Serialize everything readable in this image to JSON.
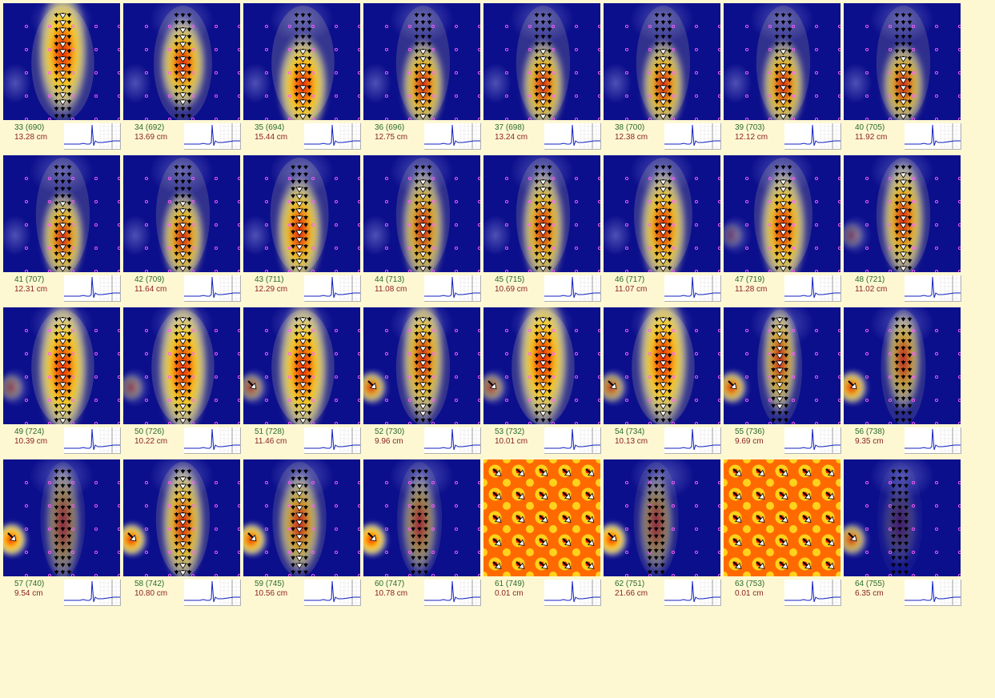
{
  "frames": [
    {
      "id": "33",
      "t": "690",
      "depth": "13.28 cm",
      "mode": "map",
      "hx": 0.51,
      "hy": 0.42,
      "intensity": 0.95,
      "w": 0.14,
      "h": 0.75,
      "side": null
    },
    {
      "id": "34",
      "t": "692",
      "depth": "13.69 cm",
      "mode": "map",
      "hx": 0.51,
      "hy": 0.52,
      "intensity": 0.9,
      "w": 0.13,
      "h": 0.55,
      "side": null
    },
    {
      "id": "35",
      "t": "694",
      "depth": "15.44 cm",
      "mode": "map",
      "hx": 0.51,
      "hy": 0.7,
      "intensity": 0.95,
      "w": 0.14,
      "h": 0.6,
      "side": null
    },
    {
      "id": "36",
      "t": "696",
      "depth": "12.75 cm",
      "mode": "map",
      "hx": 0.51,
      "hy": 0.7,
      "intensity": 0.85,
      "w": 0.12,
      "h": 0.55,
      "side": null
    },
    {
      "id": "37",
      "t": "698",
      "depth": "13.24 cm",
      "mode": "map",
      "hx": 0.51,
      "hy": 0.7,
      "intensity": 0.85,
      "w": 0.12,
      "h": 0.55,
      "side": null
    },
    {
      "id": "38",
      "t": "700",
      "depth": "12.38 cm",
      "mode": "map",
      "hx": 0.51,
      "hy": 0.7,
      "intensity": 0.85,
      "w": 0.12,
      "h": 0.55,
      "side": null
    },
    {
      "id": "39",
      "t": "703",
      "depth": "12.12 cm",
      "mode": "map",
      "hx": 0.51,
      "hy": 0.7,
      "intensity": 0.85,
      "w": 0.12,
      "h": 0.55,
      "side": null
    },
    {
      "id": "40",
      "t": "705",
      "depth": "11.92 cm",
      "mode": "map",
      "hx": 0.51,
      "hy": 0.7,
      "intensity": 0.8,
      "w": 0.12,
      "h": 0.5,
      "side": null
    },
    {
      "id": "41",
      "t": "707",
      "depth": "12.31 cm",
      "mode": "map",
      "hx": 0.51,
      "hy": 0.7,
      "intensity": 0.85,
      "w": 0.12,
      "h": 0.55,
      "side": null
    },
    {
      "id": "42",
      "t": "709",
      "depth": "11.64 cm",
      "mode": "map",
      "hx": 0.51,
      "hy": 0.7,
      "intensity": 0.85,
      "w": 0.12,
      "h": 0.55,
      "side": null
    },
    {
      "id": "43",
      "t": "711",
      "depth": "12.29 cm",
      "mode": "map",
      "hx": 0.48,
      "hy": 0.65,
      "intensity": 0.9,
      "w": 0.13,
      "h": 0.65,
      "side": null
    },
    {
      "id": "44",
      "t": "713",
      "depth": "11.08 cm",
      "mode": "map",
      "hx": 0.51,
      "hy": 0.62,
      "intensity": 0.8,
      "w": 0.12,
      "h": 0.7,
      "side": null
    },
    {
      "id": "45",
      "t": "715",
      "depth": "10.69 cm",
      "mode": "map",
      "hx": 0.51,
      "hy": 0.62,
      "intensity": 0.85,
      "w": 0.12,
      "h": 0.7,
      "side": null
    },
    {
      "id": "46",
      "t": "717",
      "depth": "11.07 cm",
      "mode": "map",
      "hx": 0.51,
      "hy": 0.62,
      "intensity": 0.9,
      "w": 0.13,
      "h": 0.7,
      "side": null
    },
    {
      "id": "47",
      "t": "719",
      "depth": "11.28 cm",
      "mode": "map",
      "hx": 0.51,
      "hy": 0.62,
      "intensity": 0.9,
      "w": 0.13,
      "h": 0.7,
      "side": 0.25
    },
    {
      "id": "48",
      "t": "721",
      "depth": "11.02 cm",
      "mode": "map",
      "hx": 0.51,
      "hy": 0.55,
      "intensity": 0.85,
      "w": 0.12,
      "h": 0.7,
      "side": 0.3
    },
    {
      "id": "49",
      "t": "724",
      "depth": "10.39 cm",
      "mode": "map",
      "hx": 0.51,
      "hy": 0.52,
      "intensity": 0.95,
      "w": 0.14,
      "h": 0.8,
      "side": 0.4
    },
    {
      "id": "50",
      "t": "726",
      "depth": "10.22 cm",
      "mode": "map",
      "hx": 0.51,
      "hy": 0.52,
      "intensity": 0.95,
      "w": 0.14,
      "h": 0.8,
      "side": 0.4
    },
    {
      "id": "51",
      "t": "728",
      "depth": "11.46 cm",
      "mode": "map",
      "hx": 0.51,
      "hy": 0.52,
      "intensity": 0.95,
      "w": 0.14,
      "h": 0.8,
      "side": 0.55
    },
    {
      "id": "52",
      "t": "730",
      "depth": "9.96 cm",
      "mode": "map",
      "hx": 0.51,
      "hy": 0.45,
      "intensity": 0.85,
      "w": 0.12,
      "h": 0.75,
      "side": 0.85
    },
    {
      "id": "53",
      "t": "732",
      "depth": "10.01 cm",
      "mode": "map",
      "hx": 0.51,
      "hy": 0.45,
      "intensity": 0.95,
      "w": 0.14,
      "h": 0.8,
      "side": 0.55
    },
    {
      "id": "54",
      "t": "734",
      "depth": "10.13 cm",
      "mode": "map",
      "hx": 0.51,
      "hy": 0.45,
      "intensity": 0.95,
      "w": 0.14,
      "h": 0.8,
      "side": 0.7
    },
    {
      "id": "55",
      "t": "736",
      "depth": "9.69 cm",
      "mode": "map",
      "hx": 0.48,
      "hy": 0.45,
      "intensity": 0.75,
      "w": 0.1,
      "h": 0.65,
      "side": 0.85
    },
    {
      "id": "56",
      "t": "738",
      "depth": "9.35 cm",
      "mode": "map",
      "hx": 0.51,
      "hy": 0.45,
      "intensity": 0.7,
      "w": 0.1,
      "h": 0.6,
      "side": 0.9
    },
    {
      "id": "57",
      "t": "740",
      "depth": "9.54 cm",
      "mode": "map",
      "hx": 0.51,
      "hy": 0.55,
      "intensity": 0.5,
      "w": 0.1,
      "h": 0.7,
      "side": 1.0
    },
    {
      "id": "58",
      "t": "742",
      "depth": "10.80 cm",
      "mode": "map",
      "hx": 0.51,
      "hy": 0.55,
      "intensity": 0.85,
      "w": 0.12,
      "h": 0.7,
      "side": 0.95
    },
    {
      "id": "59",
      "t": "745",
      "depth": "10.56 cm",
      "mode": "map",
      "hx": 0.48,
      "hy": 0.55,
      "intensity": 0.75,
      "w": 0.12,
      "h": 0.6,
      "side": 0.95
    },
    {
      "id": "60",
      "t": "747",
      "depth": "10.78 cm",
      "mode": "map",
      "hx": 0.48,
      "hy": 0.55,
      "intensity": 0.55,
      "w": 0.1,
      "h": 0.6,
      "side": 1.0
    },
    {
      "id": "61",
      "t": "749",
      "depth": "0.01 cm",
      "mode": "pattern",
      "hx": 0.5,
      "hy": 0.5,
      "intensity": 1,
      "w": 0.1,
      "h": 0.1,
      "side": null
    },
    {
      "id": "62",
      "t": "751",
      "depth": "21.66 cm",
      "mode": "map",
      "hx": 0.45,
      "hy": 0.55,
      "intensity": 0.5,
      "w": 0.1,
      "h": 0.6,
      "side": 1.0
    },
    {
      "id": "63",
      "t": "753",
      "depth": "0.01 cm",
      "mode": "pattern",
      "hx": 0.5,
      "hy": 0.5,
      "intensity": 1,
      "w": 0.1,
      "h": 0.1,
      "side": null
    },
    {
      "id": "64",
      "t": "755",
      "depth": "6.35 cm",
      "mode": "map",
      "hx": 0.48,
      "hy": 0.55,
      "intensity": 0.2,
      "w": 0.1,
      "h": 0.5,
      "side": 0.8
    }
  ]
}
